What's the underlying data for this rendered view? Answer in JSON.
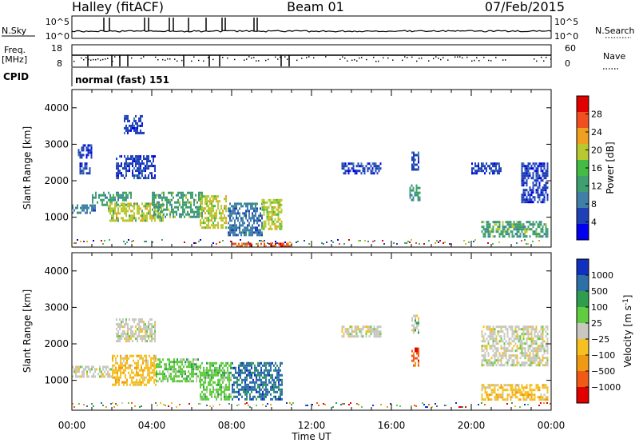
{
  "header": {
    "station": "Halley (fitACF)",
    "beam": "Beam 01",
    "date": "07/Feb/2015"
  },
  "noise_panel": {
    "left_label": "N.Sky",
    "right_label": "N.Search",
    "left_ticks": [
      "10^5",
      "10^0"
    ],
    "right_ticks": [
      "10^5",
      "10^0"
    ]
  },
  "freq_panel": {
    "left_label_top": "Freq.",
    "left_label_unit": "[MHz]",
    "left_ticks": [
      "18",
      "8"
    ],
    "right_label": "Nave",
    "right_ticks": [
      "60",
      "0"
    ]
  },
  "cpid": {
    "label": "CPID",
    "value": "normal (fast) 151"
  },
  "x_axis": {
    "label": "Time UT",
    "ticks": [
      "00:00",
      "04:00",
      "08:00",
      "12:00",
      "16:00",
      "20:00",
      "00:00"
    ]
  },
  "colors": {
    "power_scale": [
      "#0000ee",
      "#2040b8",
      "#3f7fa8",
      "#3f9f6f",
      "#44bb44",
      "#b8c830",
      "#f0a020",
      "#f05020",
      "#e00000"
    ],
    "velocity_scale": [
      "#e00000",
      "#f05a14",
      "#f09a14",
      "#f5c020",
      "#c8c8c0",
      "#60cc40",
      "#2e9e4e",
      "#2e6fa8",
      "#1030c0"
    ]
  },
  "chart_data": [
    {
      "type": "heatmap",
      "title": "",
      "xlabel": "",
      "ylabel": "Slant Range [km]",
      "x_unit": "hours UT",
      "xlim": [
        0,
        24
      ],
      "ylim": [
        180,
        4500
      ],
      "yticks": [
        "1000",
        "2000",
        "3000",
        "4000"
      ],
      "colorbar": {
        "label": "Power [dB]",
        "ticks": [
          "4",
          "8",
          "12",
          "16",
          "20",
          "24",
          "28"
        ],
        "range": [
          0,
          32
        ]
      },
      "regions": [
        {
          "t0": 0.0,
          "t1": 1.2,
          "r0": 1100,
          "r1": 1350,
          "value": 8
        },
        {
          "t0": 0.3,
          "t1": 0.9,
          "r0": 2200,
          "r1": 2500,
          "value": 4
        },
        {
          "t0": 0.3,
          "t1": 1.0,
          "r0": 2650,
          "r1": 3000,
          "value": 4
        },
        {
          "t0": 1.0,
          "t1": 3.0,
          "r0": 1350,
          "r1": 1700,
          "value": 12
        },
        {
          "t0": 1.8,
          "t1": 4.6,
          "r0": 900,
          "r1": 1400,
          "value": 18
        },
        {
          "t0": 2.2,
          "t1": 4.2,
          "r0": 2100,
          "r1": 2700,
          "value": 6
        },
        {
          "t0": 2.6,
          "t1": 3.6,
          "r0": 3300,
          "r1": 3800,
          "value": 4
        },
        {
          "t0": 4.0,
          "t1": 6.5,
          "r0": 1000,
          "r1": 1700,
          "value": 14
        },
        {
          "t0": 6.4,
          "t1": 7.7,
          "r0": 700,
          "r1": 1600,
          "value": 21
        },
        {
          "t0": 7.8,
          "t1": 9.5,
          "r0": 500,
          "r1": 1400,
          "value": 10
        },
        {
          "t0": 9.5,
          "t1": 10.5,
          "r0": 700,
          "r1": 1500,
          "value": 19
        },
        {
          "t0": 8.0,
          "t1": 11.0,
          "r0": 200,
          "r1": 300,
          "value": 26
        },
        {
          "t0": 13.5,
          "t1": 15.5,
          "r0": 2200,
          "r1": 2500,
          "value": 6
        },
        {
          "t0": 16.9,
          "t1": 17.4,
          "r0": 1500,
          "r1": 1900,
          "value": 14
        },
        {
          "t0": 17.0,
          "t1": 17.4,
          "r0": 2300,
          "r1": 2800,
          "value": 6
        },
        {
          "t0": 20.0,
          "t1": 21.5,
          "r0": 2200,
          "r1": 2500,
          "value": 4
        },
        {
          "t0": 20.5,
          "t1": 23.8,
          "r0": 500,
          "r1": 900,
          "value": 14
        },
        {
          "t0": 22.5,
          "t1": 23.8,
          "r0": 1400,
          "r1": 2500,
          "value": 4
        }
      ]
    },
    {
      "type": "heatmap",
      "title": "",
      "xlabel": "Time UT",
      "ylabel": "Slant Range [km]",
      "x_unit": "hours UT",
      "xlim": [
        0,
        24
      ],
      "ylim": [
        180,
        4500
      ],
      "yticks": [
        "1000",
        "2000",
        "3000",
        "4000"
      ],
      "colorbar": {
        "label": "Velocity [m s^-1]",
        "ticks": [
          "1000",
          "500",
          "100",
          "25",
          "−25",
          "−100",
          "−500",
          "−1000"
        ],
        "range": [
          -1200,
          1200
        ]
      },
      "regions": [
        {
          "t0": 0.0,
          "t1": 2.0,
          "r0": 1100,
          "r1": 1400,
          "value": 0
        },
        {
          "t0": 2.0,
          "t1": 4.2,
          "r0": 900,
          "r1": 1700,
          "value": -200
        },
        {
          "t0": 2.2,
          "t1": 4.2,
          "r0": 2100,
          "r1": 2700,
          "value": 0
        },
        {
          "t0": 4.2,
          "t1": 6.4,
          "r0": 1000,
          "r1": 1600,
          "value": 200
        },
        {
          "t0": 6.4,
          "t1": 8.0,
          "r0": 500,
          "r1": 1500,
          "value": 200
        },
        {
          "t0": 8.0,
          "t1": 10.5,
          "r0": 500,
          "r1": 1500,
          "value": 700
        },
        {
          "t0": 13.5,
          "t1": 15.5,
          "r0": 2200,
          "r1": 2500,
          "value": 0
        },
        {
          "t0": 17.0,
          "t1": 17.4,
          "r0": 1400,
          "r1": 1900,
          "value": -800
        },
        {
          "t0": 17.0,
          "t1": 17.4,
          "r0": 2300,
          "r1": 2800,
          "value": 120
        },
        {
          "t0": 20.5,
          "t1": 23.8,
          "r0": 500,
          "r1": 900,
          "value": -200
        },
        {
          "t0": 20.5,
          "t1": 23.8,
          "r0": 1400,
          "r1": 2500,
          "value": 0
        }
      ]
    }
  ]
}
